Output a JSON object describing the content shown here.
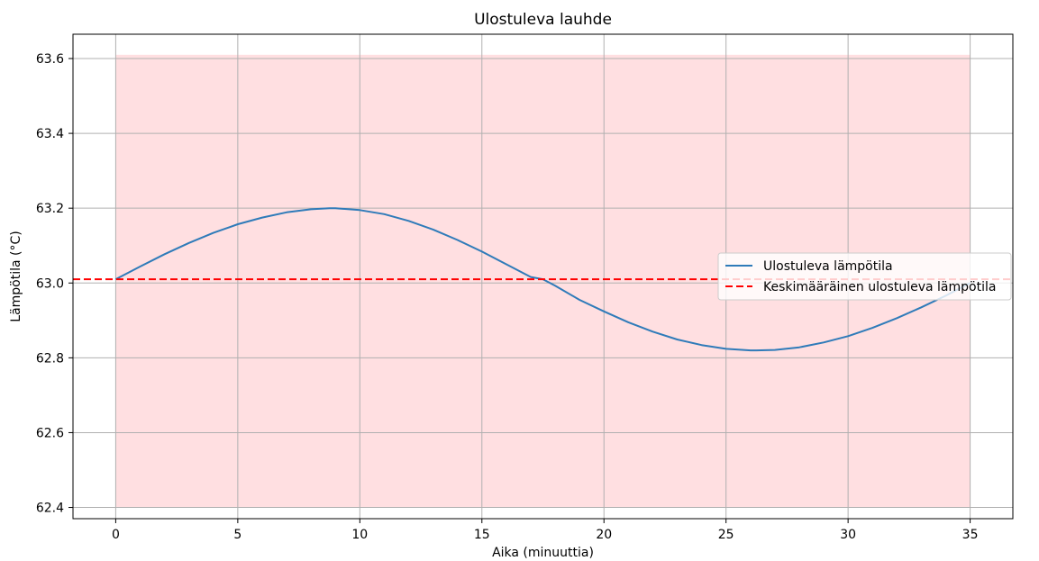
{
  "chart_data": {
    "type": "line",
    "title": "Ulostuleva lauhde",
    "xlabel": "Aika (minuuttia)",
    "ylabel": "Lämpötila (°C)",
    "xlim": [
      -1.75,
      36.75
    ],
    "ylim": [
      62.37,
      63.665
    ],
    "x_ticks": [
      0,
      5,
      10,
      15,
      20,
      25,
      30,
      35
    ],
    "y_ticks": [
      62.4,
      62.6,
      62.8,
      63.0,
      63.2,
      63.4,
      63.6
    ],
    "y_tick_labels": [
      "62.4",
      "62.6",
      "62.8",
      "63.0",
      "63.2",
      "63.4",
      "63.6"
    ],
    "grid": true,
    "legend_position": "center-right",
    "shaded_region": {
      "x": [
        0,
        35
      ],
      "y": [
        62.4,
        63.61
      ],
      "color": "#ffdfe1"
    },
    "series": [
      {
        "name": "Ulostuleva lämpötila",
        "style": "solid",
        "color": "#2f7bb9",
        "x": [
          0,
          1,
          2,
          3,
          4,
          5,
          6,
          7,
          8,
          8.75,
          9,
          10,
          11,
          12,
          13,
          14,
          15,
          16,
          17,
          17.5,
          18,
          19,
          20,
          21,
          22,
          23,
          24,
          25,
          26,
          26.25,
          27,
          28,
          29,
          30,
          31,
          32,
          33,
          34,
          35
        ],
        "values": [
          63.01,
          63.044,
          63.077,
          63.107,
          63.134,
          63.157,
          63.175,
          63.189,
          63.197,
          63.2,
          63.2,
          63.195,
          63.184,
          63.166,
          63.143,
          63.115,
          63.084,
          63.05,
          63.016,
          63.01,
          62.993,
          62.955,
          62.924,
          62.895,
          62.87,
          62.849,
          62.834,
          62.824,
          62.82,
          62.82,
          62.821,
          62.828,
          62.841,
          62.858,
          62.88,
          62.906,
          62.935,
          62.966,
          63.0
        ]
      },
      {
        "name": "Keskimääräinen ulostuleva lämpötila",
        "style": "dashed",
        "color": "#ff0000",
        "x": [
          -1.75,
          36.75
        ],
        "values": [
          63.01,
          63.01
        ]
      }
    ]
  }
}
